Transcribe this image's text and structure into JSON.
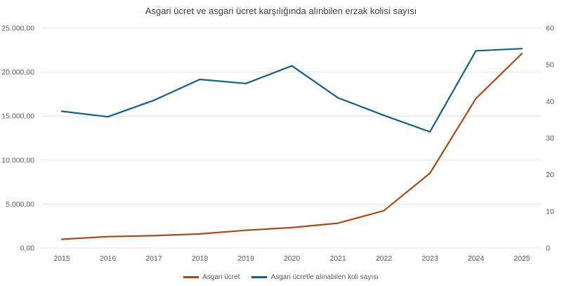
{
  "chart_data": {
    "type": "line",
    "title": "Asgari ücret ve asgari ücret karşılığında alınbilen erzak kolisi sayısı",
    "categories": [
      "2015",
      "2016",
      "2017",
      "2018",
      "2019",
      "2020",
      "2021",
      "2022",
      "2023",
      "2024",
      "2025"
    ],
    "series": [
      {
        "name": "Asgari ücret",
        "axis": "left",
        "color": "#A54B19",
        "values": [
          1000,
          1301,
          1404,
          1603,
          2021,
          2325,
          2826,
          4253,
          8507,
          17002,
          22105
        ]
      },
      {
        "name": "Asgari ücretle alınabilen koli sayısı",
        "axis": "right",
        "color": "#156082",
        "values": [
          37.3,
          35.8,
          40.3,
          46.0,
          44.9,
          49.7,
          41.0,
          36.2,
          31.7,
          53.8,
          54.4
        ]
      }
    ],
    "left_axis": {
      "min": 0,
      "max": 25000,
      "tick_labels": [
        "0,00",
        "5.000,00",
        "10.000,00",
        "15.000,00",
        "20.000,00",
        "25.000,00"
      ]
    },
    "right_axis": {
      "min": 0,
      "max": 60,
      "tick_labels": [
        "0",
        "10",
        "20",
        "30",
        "40",
        "50",
        "60"
      ]
    },
    "grid": true,
    "legend_position": "bottom",
    "colors": {
      "grid": "#E5E5E5",
      "tick_text": "#595959",
      "title_text": "#3F3F3F",
      "background": "#FFFFFF"
    }
  }
}
